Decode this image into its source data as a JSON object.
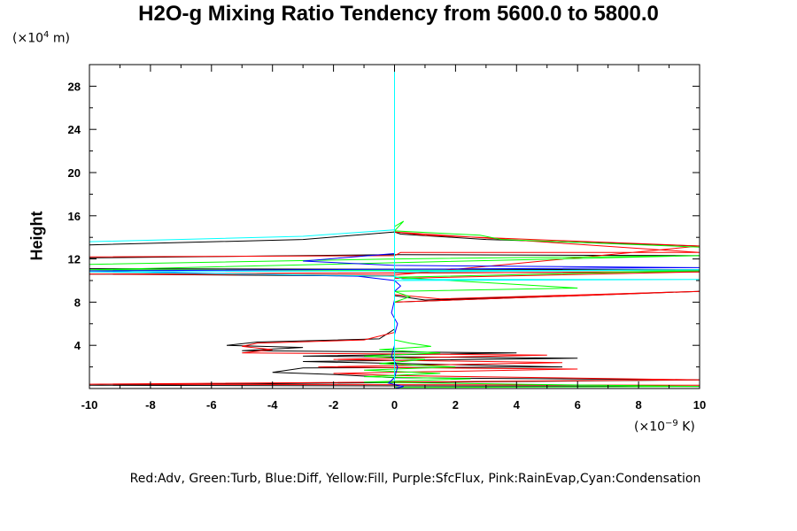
{
  "chart_data": {
    "type": "line",
    "title": "H2O-g Mixing Ratio Tendency from 5600.0 to 5800.0",
    "ylabel": "Height",
    "y_units": "(×10",
    "y_units_exp": "4",
    "y_units_tail": " m)",
    "x_units": "(×10",
    "x_units_exp": "−9",
    "x_units_tail": " K)",
    "legend_text": "Red:Adv, Green:Turb, Blue:Diff, Yellow:Fill, Purple:SfcFlux, Pink:RainEvap,Cyan:Condensation",
    "xlim": [
      -10,
      10
    ],
    "ylim": [
      0,
      30
    ],
    "x_ticks": [
      -10,
      -8,
      -6,
      -4,
      -2,
      0,
      2,
      4,
      6,
      8,
      10
    ],
    "y_ticks": [
      4,
      8,
      12,
      16,
      20,
      24,
      28
    ],
    "grid": false,
    "series": [
      {
        "color": "#000000",
        "points": [
          [
            -10,
            13.3
          ],
          [
            -3,
            13.8
          ],
          [
            0,
            14.5
          ],
          [
            0.2,
            14.3
          ],
          [
            3,
            13.8
          ],
          [
            10,
            13.2
          ],
          [
            10,
            12.3
          ],
          [
            0,
            12.4
          ],
          [
            -10,
            12.1
          ],
          [
            -10,
            11.1
          ],
          [
            10,
            11.0
          ],
          [
            10,
            10.8
          ],
          [
            -10,
            10.6
          ],
          [
            0,
            10.4
          ],
          [
            0,
            8.6
          ],
          [
            1,
            8.2
          ],
          [
            10,
            9.0
          ],
          [
            0,
            8.0
          ],
          [
            0,
            5.5
          ],
          [
            -0.5,
            4.6
          ],
          [
            -4.5,
            4.3
          ],
          [
            -5.5,
            4.0
          ],
          [
            -3,
            3.8
          ],
          [
            -5,
            3.5
          ],
          [
            4,
            3.3
          ],
          [
            -3,
            3.0
          ],
          [
            6,
            2.8
          ],
          [
            -3,
            2.5
          ],
          [
            5.5,
            2.0
          ],
          [
            -3,
            1.9
          ],
          [
            -4,
            1.5
          ],
          [
            -2,
            1.3
          ],
          [
            0,
            1.0
          ],
          [
            10,
            0.8
          ],
          [
            -10,
            0.3
          ],
          [
            10,
            0.2
          ]
        ]
      },
      {
        "color": "#ff0000",
        "points": [
          [
            -10,
            12.2
          ],
          [
            0,
            12.3
          ],
          [
            0.2,
            12.6
          ],
          [
            10,
            12.6
          ],
          [
            0,
            14.5
          ],
          [
            1,
            14.2
          ],
          [
            10,
            13.2
          ],
          [
            0,
            10.5
          ],
          [
            -10,
            10.6
          ],
          [
            10,
            10.8
          ],
          [
            0,
            10.2
          ],
          [
            0,
            8.7
          ],
          [
            1.5,
            8.3
          ],
          [
            10,
            9.0
          ],
          [
            0,
            8.0
          ],
          [
            0,
            5.2
          ],
          [
            -1,
            4.5
          ],
          [
            -4.5,
            4.2
          ],
          [
            -5,
            3.9
          ],
          [
            -4,
            3.6
          ],
          [
            -5,
            3.3
          ],
          [
            5,
            3.1
          ],
          [
            -2,
            2.7
          ],
          [
            5.5,
            2.4
          ],
          [
            -2.5,
            2.0
          ],
          [
            6,
            1.8
          ],
          [
            -2,
            1.4
          ],
          [
            0,
            1.2
          ],
          [
            10,
            0.8
          ],
          [
            -10,
            0.4
          ],
          [
            10,
            0.3
          ]
        ]
      },
      {
        "color": "#00ff00",
        "points": [
          [
            -10,
            11.5
          ],
          [
            0,
            12.0
          ],
          [
            10,
            12.3
          ],
          [
            -10,
            11.0
          ],
          [
            10,
            10.9
          ],
          [
            0,
            10.3
          ],
          [
            3,
            9.8
          ],
          [
            6,
            9.3
          ],
          [
            0,
            9.0
          ],
          [
            0.5,
            8.5
          ],
          [
            0,
            8.0
          ],
          [
            0,
            4.5
          ],
          [
            0.5,
            4.2
          ],
          [
            1.2,
            3.9
          ],
          [
            -0.5,
            3.6
          ],
          [
            1.5,
            3.3
          ],
          [
            -1,
            3.0
          ],
          [
            1,
            2.7
          ],
          [
            -0.5,
            2.3
          ],
          [
            2,
            2.0
          ],
          [
            -1,
            1.7
          ],
          [
            1.5,
            1.4
          ],
          [
            -1,
            1.1
          ],
          [
            2.5,
            0.9
          ],
          [
            -1,
            0.6
          ],
          [
            4,
            0.4
          ],
          [
            10,
            0.2
          ],
          [
            0,
            0.1
          ],
          [
            0,
            15.0
          ],
          [
            0.3,
            15.5
          ],
          [
            0,
            14.6
          ],
          [
            2.8,
            14.2
          ],
          [
            3.5,
            13.8
          ],
          [
            10,
            13.1
          ]
        ]
      },
      {
        "color": "#0000ff",
        "points": [
          [
            0,
            15.5
          ],
          [
            0,
            14.5
          ],
          [
            0,
            12.5
          ],
          [
            -3,
            11.8
          ],
          [
            0,
            11.4
          ],
          [
            10,
            11.2
          ],
          [
            -10,
            10.9
          ],
          [
            -5,
            10.6
          ],
          [
            -1.2,
            10.4
          ],
          [
            0,
            10.0
          ],
          [
            0.2,
            9.5
          ],
          [
            0,
            9.0
          ],
          [
            0,
            8.2
          ],
          [
            -0.1,
            7.0
          ],
          [
            0.1,
            6.0
          ],
          [
            0,
            5.0
          ],
          [
            0,
            4.0
          ],
          [
            -0.1,
            3.0
          ],
          [
            0.1,
            2.0
          ],
          [
            0,
            1.0
          ],
          [
            -0.2,
            0.5
          ],
          [
            0.3,
            0.2
          ],
          [
            0,
            0.0
          ]
        ]
      },
      {
        "color": "#00ffff",
        "points": [
          [
            -10,
            13.6
          ],
          [
            -3,
            14.1
          ],
          [
            0,
            14.7
          ],
          [
            0,
            14.2
          ],
          [
            0,
            12.0
          ],
          [
            0,
            10.8
          ],
          [
            10,
            11.0
          ],
          [
            -10,
            10.8
          ],
          [
            0,
            10.4
          ],
          [
            0.3,
            10.1
          ],
          [
            10,
            10.1
          ],
          [
            0,
            10.0
          ],
          [
            0,
            0.0
          ]
        ]
      },
      {
        "color": "#00ffff",
        "points": [
          [
            0,
            0
          ],
          [
            0,
            30
          ]
        ]
      }
    ]
  }
}
